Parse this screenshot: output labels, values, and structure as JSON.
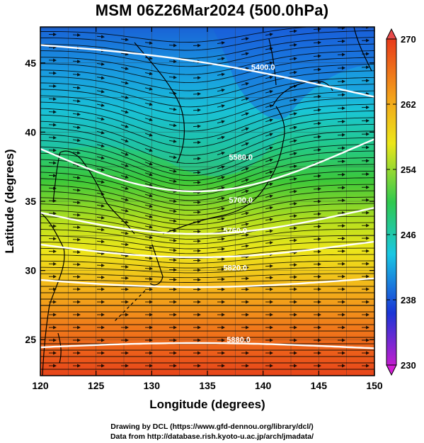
{
  "title": "MSM 06Z26Mar2024 (500.0hPa)",
  "map": {
    "lon_range": [
      120,
      150
    ],
    "lat_range": [
      22.4,
      47.6
    ],
    "xlabel": "Longitude (degrees)",
    "ylabel": "Latitude  (degrees)",
    "x_ticks": [
      "120",
      "125",
      "130",
      "135",
      "140",
      "145",
      "150"
    ],
    "y_ticks": [
      "25",
      "30",
      "35",
      "40",
      "45"
    ],
    "shaded_field": "temperature",
    "wind": "streamlines"
  },
  "contours": [
    {
      "label": "5400.0",
      "lon": 140,
      "lat": 44.5
    },
    {
      "label": "5580.0",
      "lon": 138,
      "lat": 38.0
    },
    {
      "label": "5700.0",
      "lon": 138,
      "lat": 34.9
    },
    {
      "label": "5760.0",
      "lon": 137.5,
      "lat": 32.7
    },
    {
      "label": "5820.0",
      "lon": 137.5,
      "lat": 30.0
    },
    {
      "label": "5880.0",
      "lon": 137.8,
      "lat": 24.8
    }
  ],
  "colorbar": {
    "min": 230,
    "max": 270,
    "ticks": [
      "270",
      "262",
      "254",
      "246",
      "238",
      "230"
    ],
    "colors": {
      "top": "#e83a1a",
      "orange": "#f3a21a",
      "yellow": "#ece61a",
      "green": "#2fc94e",
      "cyan": "#19c7e3",
      "blue": "#1a35d6",
      "bottom": "#c01ecf"
    }
  },
  "credits": [
    "Drawing by DCL (https://www.gfd-dennou.org/library/dcl/)",
    "Data from http://database.rish.kyoto-u.ac.jp/arch/jmadata/"
  ]
}
